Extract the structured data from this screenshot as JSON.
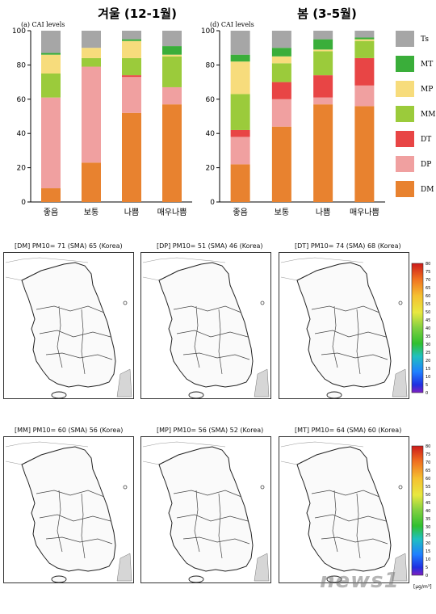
{
  "colors": {
    "Ts": "#a6a6a6",
    "MT": "#3aae3a",
    "MP": "#f7dc7c",
    "MM": "#9bcb3b",
    "DT": "#e84545",
    "DP": "#f0a0a0",
    "DM": "#e8822f"
  },
  "chart_data": [
    {
      "type": "bar",
      "stacked": true,
      "title": "겨울 (12-1월)",
      "panel_label": "(a) CAI levels",
      "categories": [
        "좋음",
        "보통",
        "나쁨",
        "매우나쁨"
      ],
      "ylim": [
        0,
        100
      ],
      "yticks": [
        0,
        20,
        40,
        60,
        80,
        100
      ],
      "series": [
        {
          "name": "DM",
          "values": [
            8,
            23,
            52,
            57
          ]
        },
        {
          "name": "DP",
          "values": [
            53,
            56,
            21,
            10
          ]
        },
        {
          "name": "DT",
          "values": [
            0,
            0,
            1,
            0
          ]
        },
        {
          "name": "MM",
          "values": [
            14,
            5,
            10,
            18
          ]
        },
        {
          "name": "MP",
          "values": [
            11,
            6,
            10,
            1
          ]
        },
        {
          "name": "MT",
          "values": [
            1,
            0,
            1,
            5
          ]
        },
        {
          "name": "Ts",
          "values": [
            13,
            10,
            5,
            9
          ]
        }
      ]
    },
    {
      "type": "bar",
      "stacked": true,
      "title": "봄 (3-5월)",
      "panel_label": "(d) CAI levels",
      "categories": [
        "좋음",
        "보통",
        "나쁨",
        "매우나쁨"
      ],
      "ylim": [
        0,
        100
      ],
      "yticks": [
        0,
        20,
        40,
        60,
        80,
        100
      ],
      "legend": [
        "Ts",
        "MT",
        "MP",
        "MM",
        "DT",
        "DP",
        "DM"
      ],
      "series": [
        {
          "name": "DM",
          "values": [
            22,
            44,
            57,
            56
          ]
        },
        {
          "name": "DP",
          "values": [
            16,
            16,
            4,
            12
          ]
        },
        {
          "name": "DT",
          "values": [
            4,
            10,
            13,
            16
          ]
        },
        {
          "name": "MM",
          "values": [
            21,
            11,
            14,
            10
          ]
        },
        {
          "name": "MP",
          "values": [
            19,
            4,
            1,
            1
          ]
        },
        {
          "name": "MT",
          "values": [
            4,
            5,
            6,
            1
          ]
        },
        {
          "name": "Ts",
          "values": [
            14,
            10,
            5,
            4
          ]
        }
      ]
    }
  ],
  "maps": [
    {
      "title": "[DM] PM10= 71 (SMA) 65 (Korea)"
    },
    {
      "title": "[DP] PM10= 51 (SMA) 46 (Korea)"
    },
    {
      "title": "[DT] PM10= 74 (SMA) 68 (Korea)"
    },
    {
      "title": "[MM] PM10= 60 (SMA) 56 (Korea)"
    },
    {
      "title": "[MP] PM10= 56 (SMA) 52 (Korea)"
    },
    {
      "title": "[MT] PM10= 64 (SMA) 60 (Korea)"
    }
  ],
  "colorbar": {
    "ticks": [
      "80",
      "75",
      "70",
      "65",
      "60",
      "55",
      "50",
      "45",
      "40",
      "35",
      "30",
      "25",
      "20",
      "15",
      "10",
      "5",
      "0"
    ],
    "unit": "[μg/m³]"
  },
  "watermark": "news1"
}
